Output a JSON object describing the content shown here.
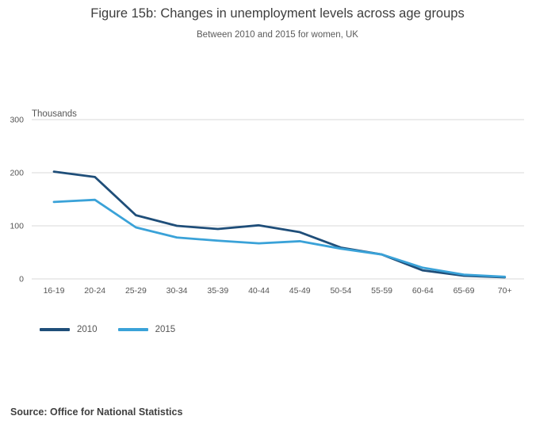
{
  "chart_data": {
    "type": "line",
    "title": "Figure 15b: Changes in unemployment levels across age groups",
    "subtitle": "Between 2010 and 2015 for women, UK",
    "ylabel": "Thousands",
    "xlabel": "",
    "ylim": [
      0,
      300
    ],
    "yticks": [
      0,
      100,
      200,
      300
    ],
    "grid": true,
    "legend_position": "bottom-left",
    "categories": [
      "16-19",
      "20-24",
      "25-29",
      "30-34",
      "35-39",
      "40-44",
      "45-49",
      "50-54",
      "55-59",
      "60-64",
      "65-69",
      "70+"
    ],
    "series": [
      {
        "name": "2010",
        "color": "#1f4e79",
        "values": [
          202,
          192,
          120,
          100,
          94,
          101,
          88,
          59,
          46,
          16,
          6,
          3
        ]
      },
      {
        "name": "2015",
        "color": "#3aa2d8",
        "values": [
          145,
          149,
          97,
          78,
          72,
          67,
          71,
          57,
          46,
          21,
          8,
          4
        ]
      }
    ],
    "colors": {
      "grid": "#d9d9d9",
      "tick_text": "#555555",
      "title_text": "#3d3d3d"
    }
  },
  "source": {
    "label": "Source: Office for National Statistics"
  }
}
